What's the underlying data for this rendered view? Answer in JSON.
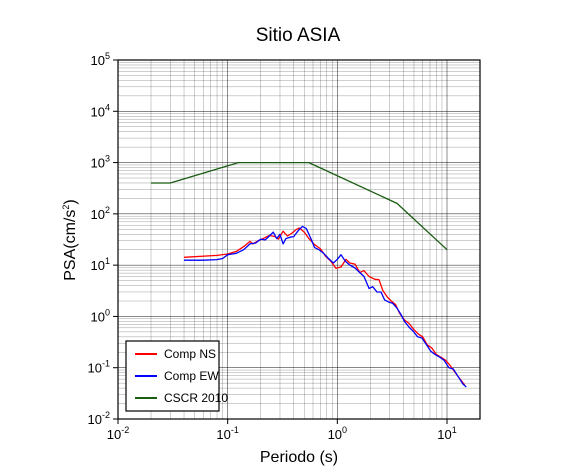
{
  "chart_data": {
    "type": "line",
    "title": "Sitio ASIA",
    "xlabel": "Periodo (s)",
    "ylabel": "PSA(cm/s",
    "ylabel_sup": "2",
    "ylabel_close": ")",
    "x_scale": "log",
    "y_scale": "log",
    "xlim": [
      0.01,
      20
    ],
    "ylim": [
      0.01,
      100000
    ],
    "grid": true,
    "legend_position": "bottom-left",
    "x_ticks": [
      {
        "base": "10",
        "exp": "-2",
        "value": 0.01
      },
      {
        "base": "10",
        "exp": "-1",
        "value": 0.1
      },
      {
        "base": "10",
        "exp": "0",
        "value": 1
      },
      {
        "base": "10",
        "exp": "1",
        "value": 10
      }
    ],
    "y_ticks": [
      {
        "base": "10",
        "exp": "-2",
        "value": 0.01
      },
      {
        "base": "10",
        "exp": "-1",
        "value": 0.1
      },
      {
        "base": "10",
        "exp": "0",
        "value": 1
      },
      {
        "base": "10",
        "exp": "1",
        "value": 10
      },
      {
        "base": "10",
        "exp": "2",
        "value": 100
      },
      {
        "base": "10",
        "exp": "3",
        "value": 1000
      },
      {
        "base": "10",
        "exp": "4",
        "value": 10000
      },
      {
        "base": "10",
        "exp": "5",
        "value": 100000
      }
    ],
    "series": [
      {
        "name": "Comp NS",
        "color": "#ff0000",
        "points": [
          [
            0.04,
            14.2
          ],
          [
            0.08,
            15.5
          ],
          [
            0.1,
            16.5
          ],
          [
            0.12,
            18.5
          ],
          [
            0.14,
            23
          ],
          [
            0.16,
            29
          ],
          [
            0.17,
            26
          ],
          [
            0.19,
            30
          ],
          [
            0.21,
            33
          ],
          [
            0.24,
            38
          ],
          [
            0.27,
            36
          ],
          [
            0.29,
            32
          ],
          [
            0.32,
            46
          ],
          [
            0.35,
            37
          ],
          [
            0.38,
            41
          ],
          [
            0.42,
            49
          ],
          [
            0.45,
            53
          ],
          [
            0.5,
            44
          ],
          [
            0.55,
            33
          ],
          [
            0.62,
            25
          ],
          [
            0.7,
            21
          ],
          [
            0.78,
            15
          ],
          [
            0.87,
            12
          ],
          [
            0.97,
            8.7
          ],
          [
            1.08,
            9.2
          ],
          [
            1.2,
            13
          ],
          [
            1.3,
            11
          ],
          [
            1.45,
            10.5
          ],
          [
            1.6,
            7.2
          ],
          [
            1.75,
            7.8
          ],
          [
            1.95,
            6
          ],
          [
            2.2,
            5.3
          ],
          [
            2.4,
            5.2
          ],
          [
            2.6,
            3.2
          ],
          [
            2.85,
            2.4
          ],
          [
            3.1,
            2
          ],
          [
            3.4,
            1.7
          ],
          [
            3.7,
            1.15
          ],
          [
            4.1,
            0.85
          ],
          [
            4.5,
            0.73
          ],
          [
            5,
            0.55
          ],
          [
            5.5,
            0.45
          ],
          [
            6,
            0.4
          ],
          [
            6.6,
            0.28
          ],
          [
            7.3,
            0.24
          ],
          [
            8,
            0.18
          ],
          [
            8.8,
            0.16
          ],
          [
            9.7,
            0.14
          ],
          [
            10.7,
            0.11
          ],
          [
            11.8,
            0.082
          ],
          [
            13,
            0.062
          ],
          [
            14.5,
            0.046
          ]
        ]
      },
      {
        "name": "Comp EW",
        "color": "#0000ff",
        "points": [
          [
            0.04,
            12.5
          ],
          [
            0.06,
            12.5
          ],
          [
            0.08,
            12.8
          ],
          [
            0.09,
            13.5
          ],
          [
            0.1,
            16
          ],
          [
            0.11,
            16.5
          ],
          [
            0.12,
            17
          ],
          [
            0.14,
            20
          ],
          [
            0.16,
            26
          ],
          [
            0.18,
            27
          ],
          [
            0.2,
            32
          ],
          [
            0.22,
            31
          ],
          [
            0.24,
            37
          ],
          [
            0.26,
            44
          ],
          [
            0.28,
            33
          ],
          [
            0.3,
            40
          ],
          [
            0.32,
            26
          ],
          [
            0.34,
            33
          ],
          [
            0.37,
            35
          ],
          [
            0.4,
            36
          ],
          [
            0.44,
            47
          ],
          [
            0.48,
            57
          ],
          [
            0.52,
            52
          ],
          [
            0.57,
            34
          ],
          [
            0.62,
            22
          ],
          [
            0.68,
            20
          ],
          [
            0.75,
            17
          ],
          [
            0.83,
            13.5
          ],
          [
            0.92,
            11
          ],
          [
            1,
            13
          ],
          [
            1.08,
            16
          ],
          [
            1.18,
            12
          ],
          [
            1.3,
            10
          ],
          [
            1.45,
            8.8
          ],
          [
            1.6,
            7.2
          ],
          [
            1.75,
            6
          ],
          [
            1.95,
            3.5
          ],
          [
            2.1,
            3.8
          ],
          [
            2.3,
            3
          ],
          [
            2.5,
            3
          ],
          [
            2.7,
            2.1
          ],
          [
            2.95,
            1.9
          ],
          [
            3.2,
            1.8
          ],
          [
            3.5,
            1.45
          ],
          [
            3.8,
            1.1
          ],
          [
            4.1,
            0.8
          ],
          [
            4.5,
            0.62
          ],
          [
            4.9,
            0.52
          ],
          [
            5.4,
            0.4
          ],
          [
            5.9,
            0.38
          ],
          [
            6.5,
            0.28
          ],
          [
            7.1,
            0.21
          ],
          [
            7.8,
            0.18
          ],
          [
            8.6,
            0.16
          ],
          [
            9.4,
            0.14
          ],
          [
            10.4,
            0.1
          ],
          [
            11.4,
            0.095
          ],
          [
            12.6,
            0.068
          ],
          [
            14,
            0.048
          ],
          [
            15,
            0.042
          ]
        ]
      },
      {
        "name": "CSCR 2010",
        "color": "#1a5c12",
        "points": [
          [
            0.02,
            400
          ],
          [
            0.03,
            400
          ],
          [
            0.125,
            1000
          ],
          [
            0.55,
            1000
          ],
          [
            3.5,
            160
          ],
          [
            10,
            20
          ]
        ]
      }
    ]
  }
}
